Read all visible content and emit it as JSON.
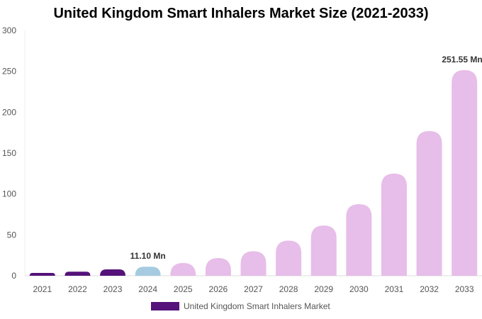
{
  "chart_data": {
    "type": "bar",
    "title": "United Kingdom Smart Inhalers Market Size (2021-2033)",
    "categories": [
      "2021",
      "2022",
      "2023",
      "2024",
      "2025",
      "2026",
      "2027",
      "2028",
      "2029",
      "2030",
      "2031",
      "2032",
      "2033"
    ],
    "series": [
      {
        "name": "United Kingdom Smart Inhalers Market",
        "values": [
          3.5,
          5.0,
          7.8,
          11.1,
          15.6,
          21.7,
          30.0,
          43.0,
          61.5,
          87.6,
          125.0,
          177.0,
          251.55
        ]
      }
    ],
    "bar_colors": [
      "#54127a",
      "#54127a",
      "#54127a",
      "#a6cbe0",
      "#e7bde9",
      "#e7bde9",
      "#e7bde9",
      "#e7bde9",
      "#e7bde9",
      "#e7bde9",
      "#e7bde9",
      "#e7bde9",
      "#e7bde9"
    ],
    "legend_color": "#54127a",
    "data_labels": [
      {
        "category": "2024",
        "text": "11.10 Mn"
      },
      {
        "category": "2033",
        "text": "251.55 Mn"
      }
    ],
    "ylim": [
      0,
      300
    ],
    "yticks": [
      0,
      50,
      100,
      150,
      200,
      250,
      300
    ],
    "grid": false,
    "legend_position": "bottom",
    "xlabel": "",
    "ylabel": ""
  }
}
